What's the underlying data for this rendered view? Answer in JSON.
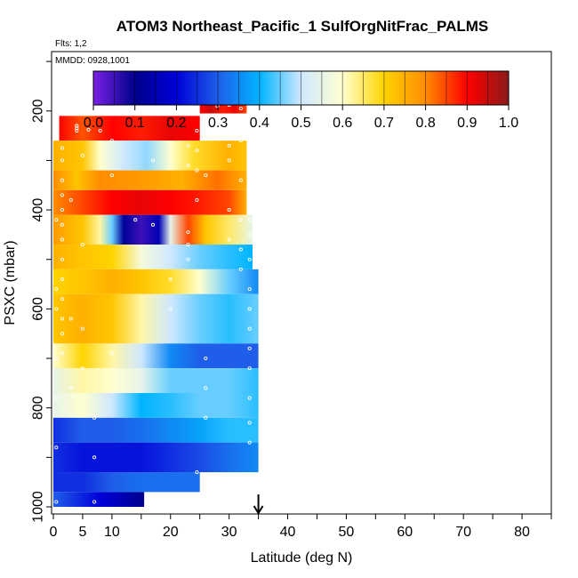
{
  "chart_data": {
    "type": "heatmap",
    "title": "ATOM3 Northeast_Pacific_1 SulfOrgNitFrac_PALMS",
    "flights_note": "Flts: 1,2",
    "dates_note": "MMDD: 0928,1001",
    "xlabel": "Latitude (deg N)",
    "ylabel": "PSXC (mbar)",
    "xlim": [
      0,
      85
    ],
    "ylim": [
      1000,
      80
    ],
    "x_ticks": [
      "0",
      "5",
      "10",
      "20",
      "30",
      "40",
      "50",
      "60",
      "70",
      "80"
    ],
    "y_ticks": [
      "200",
      "400",
      "600",
      "800",
      "1000"
    ],
    "colorbar": {
      "range": [
        0.0,
        1.0
      ],
      "ticks": [
        "0.0",
        "0.1",
        "0.2",
        "0.3",
        "0.4",
        "0.5",
        "0.6",
        "0.7",
        "0.8",
        "0.9",
        "1.0"
      ],
      "colors": [
        "#7a22e6",
        "#00008b",
        "#0000d8",
        "#1f5ee8",
        "#00b4ff",
        "#cfe8ff",
        "#ffffd0",
        "#ffd300",
        "#ff8c00",
        "#ff0000",
        "#8b1a1a"
      ]
    },
    "marker_latitude": 35,
    "bands": [
      {
        "p": [
          165,
          205
        ],
        "x": [
          25,
          33
        ],
        "stops": [
          [
            25,
            0.9
          ],
          [
            27,
            0.95
          ],
          [
            29,
            0.88
          ],
          [
            31,
            0.92
          ],
          [
            33,
            0.85
          ]
        ]
      },
      {
        "p": [
          210,
          260
        ],
        "x": [
          1,
          25
        ],
        "stops": [
          [
            1,
            0.9
          ],
          [
            5,
            0.84
          ],
          [
            10,
            0.9
          ],
          [
            15,
            0.88
          ],
          [
            20,
            0.92
          ],
          [
            25,
            0.9
          ]
        ]
      },
      {
        "p": [
          260,
          320
        ],
        "x": [
          0,
          33
        ],
        "stops": [
          [
            0,
            0.75
          ],
          [
            5,
            0.72
          ],
          [
            8,
            0.6
          ],
          [
            12,
            0.5
          ],
          [
            16,
            0.47
          ],
          [
            20,
            0.6
          ],
          [
            24,
            0.68
          ],
          [
            30,
            0.75
          ],
          [
            33,
            0.72
          ]
        ]
      },
      {
        "p": [
          320,
          360
        ],
        "x": [
          0,
          33
        ],
        "stops": [
          [
            0,
            0.8
          ],
          [
            4,
            0.72
          ],
          [
            8,
            0.8
          ],
          [
            15,
            0.78
          ],
          [
            22,
            0.75
          ],
          [
            28,
            0.82
          ],
          [
            33,
            0.75
          ]
        ]
      },
      {
        "p": [
          360,
          410
        ],
        "x": [
          0,
          33
        ],
        "stops": [
          [
            0,
            0.8
          ],
          [
            5,
            0.85
          ],
          [
            10,
            0.9
          ],
          [
            15,
            0.92
          ],
          [
            20,
            0.9
          ],
          [
            25,
            0.88
          ],
          [
            30,
            0.85
          ],
          [
            33,
            0.75
          ]
        ]
      },
      {
        "p": [
          410,
          470
        ],
        "x": [
          0,
          34
        ],
        "stops": [
          [
            0,
            0.78
          ],
          [
            5,
            0.72
          ],
          [
            8,
            0.62
          ],
          [
            10,
            0.45
          ],
          [
            12,
            0.12
          ],
          [
            15,
            0.05
          ],
          [
            18,
            0.15
          ],
          [
            20,
            0.55
          ],
          [
            23,
            0.85
          ],
          [
            26,
            0.72
          ],
          [
            30,
            0.65
          ],
          [
            34,
            0.55
          ]
        ]
      },
      {
        "p": [
          470,
          520
        ],
        "x": [
          0,
          34
        ],
        "stops": [
          [
            0,
            0.75
          ],
          [
            5,
            0.72
          ],
          [
            10,
            0.7
          ],
          [
            15,
            0.58
          ],
          [
            20,
            0.5
          ],
          [
            25,
            0.45
          ],
          [
            30,
            0.42
          ],
          [
            34,
            0.4
          ]
        ]
      },
      {
        "p": [
          520,
          570
        ],
        "x": [
          0,
          35
        ],
        "stops": [
          [
            0,
            0.7
          ],
          [
            5,
            0.72
          ],
          [
            10,
            0.75
          ],
          [
            15,
            0.72
          ],
          [
            20,
            0.68
          ],
          [
            25,
            0.6
          ],
          [
            30,
            0.45
          ],
          [
            35,
            0.35
          ]
        ]
      },
      {
        "p": [
          570,
          670
        ],
        "x": [
          0,
          35
        ],
        "stops": [
          [
            0,
            0.72
          ],
          [
            5,
            0.75
          ],
          [
            10,
            0.72
          ],
          [
            15,
            0.62
          ],
          [
            20,
            0.5
          ],
          [
            25,
            0.45
          ],
          [
            30,
            0.42
          ],
          [
            35,
            0.45
          ]
        ]
      },
      {
        "p": [
          670,
          720
        ],
        "x": [
          0,
          35
        ],
        "stops": [
          [
            0,
            0.6
          ],
          [
            5,
            0.7
          ],
          [
            10,
            0.62
          ],
          [
            15,
            0.5
          ],
          [
            20,
            0.35
          ],
          [
            25,
            0.3
          ],
          [
            30,
            0.3
          ],
          [
            35,
            0.3
          ]
        ]
      },
      {
        "p": [
          720,
          770
        ],
        "x": [
          0,
          35
        ],
        "stops": [
          [
            0,
            0.55
          ],
          [
            5,
            0.62
          ],
          [
            10,
            0.6
          ],
          [
            15,
            0.55
          ],
          [
            20,
            0.45
          ],
          [
            25,
            0.45
          ],
          [
            30,
            0.45
          ],
          [
            35,
            0.42
          ]
        ]
      },
      {
        "p": [
          770,
          820
        ],
        "x": [
          0,
          35
        ],
        "stops": [
          [
            0,
            0.55
          ],
          [
            5,
            0.6
          ],
          [
            10,
            0.5
          ],
          [
            15,
            0.4
          ],
          [
            20,
            0.42
          ],
          [
            25,
            0.45
          ],
          [
            30,
            0.45
          ],
          [
            35,
            0.42
          ]
        ]
      },
      {
        "p": [
          820,
          870
        ],
        "x": [
          0,
          35
        ],
        "stops": [
          [
            0,
            0.25
          ],
          [
            5,
            0.3
          ],
          [
            10,
            0.3
          ],
          [
            15,
            0.32
          ],
          [
            20,
            0.35
          ],
          [
            25,
            0.38
          ],
          [
            30,
            0.42
          ],
          [
            35,
            0.42
          ]
        ]
      },
      {
        "p": [
          870,
          930
        ],
        "x": [
          0,
          35
        ],
        "stops": [
          [
            0,
            0.25
          ],
          [
            5,
            0.22
          ],
          [
            10,
            0.22
          ],
          [
            15,
            0.22
          ],
          [
            20,
            0.25
          ],
          [
            25,
            0.28
          ],
          [
            30,
            0.32
          ],
          [
            35,
            0.35
          ]
        ]
      },
      {
        "p": [
          930,
          970
        ],
        "x": [
          0,
          25
        ],
        "stops": [
          [
            0,
            0.25
          ],
          [
            5,
            0.25
          ],
          [
            10,
            0.3
          ],
          [
            15,
            0.32
          ],
          [
            20,
            0.32
          ],
          [
            25,
            0.32
          ]
        ]
      },
      {
        "p": [
          970,
          1000
        ],
        "x": [
          0,
          15.5
        ],
        "stops": [
          [
            0,
            0.3
          ],
          [
            4,
            0.25
          ],
          [
            8,
            0.2
          ],
          [
            12,
            0.15
          ],
          [
            15.5,
            0.1
          ]
        ]
      }
    ],
    "points": [
      {
        "lat": 28,
        "p": [
          180,
          185,
          190
        ]
      },
      {
        "lat": 30,
        "p": [
          182,
          188
        ]
      },
      {
        "lat": 32,
        "p": [
          185,
          195
        ]
      },
      {
        "lat": 4,
        "p": [
          230,
          235,
          240
        ]
      },
      {
        "lat": 6,
        "p": [
          238
        ]
      },
      {
        "lat": 8,
        "p": [
          240
        ]
      },
      {
        "lat": 1.5,
        "p": [
          275,
          300,
          340,
          370,
          400,
          430,
          460,
          500,
          540,
          580,
          620,
          650,
          690
        ]
      },
      {
        "lat": 0.5,
        "p": [
          420,
          560,
          600,
          700,
          780,
          880,
          990
        ]
      },
      {
        "lat": 3,
        "p": [
          380,
          620,
          760
        ]
      },
      {
        "lat": 5,
        "p": [
          290,
          470,
          640,
          720
        ]
      },
      {
        "lat": 7,
        "p": [
          820,
          900,
          990
        ]
      },
      {
        "lat": 10,
        "p": [
          260,
          330,
          690
        ]
      },
      {
        "lat": 14,
        "p": [
          420
        ]
      },
      {
        "lat": 17,
        "p": [
          300,
          430
        ]
      },
      {
        "lat": 20,
        "p": [
          540,
          600
        ]
      },
      {
        "lat": 23,
        "p": [
          270,
          310,
          445,
          470,
          500
        ]
      },
      {
        "lat": 24.5,
        "p": [
          240,
          280,
          320,
          380,
          930
        ]
      },
      {
        "lat": 26,
        "p": [
          250,
          330,
          700,
          760,
          820
        ]
      },
      {
        "lat": 30,
        "p": [
          250,
          270,
          300,
          400,
          460
        ]
      },
      {
        "lat": 32,
        "p": [
          260,
          340,
          420,
          480,
          520
        ]
      },
      {
        "lat": 33.5,
        "p": [
          420,
          450,
          500,
          560,
          600,
          640,
          680,
          720,
          780,
          830,
          870
        ]
      }
    ]
  }
}
